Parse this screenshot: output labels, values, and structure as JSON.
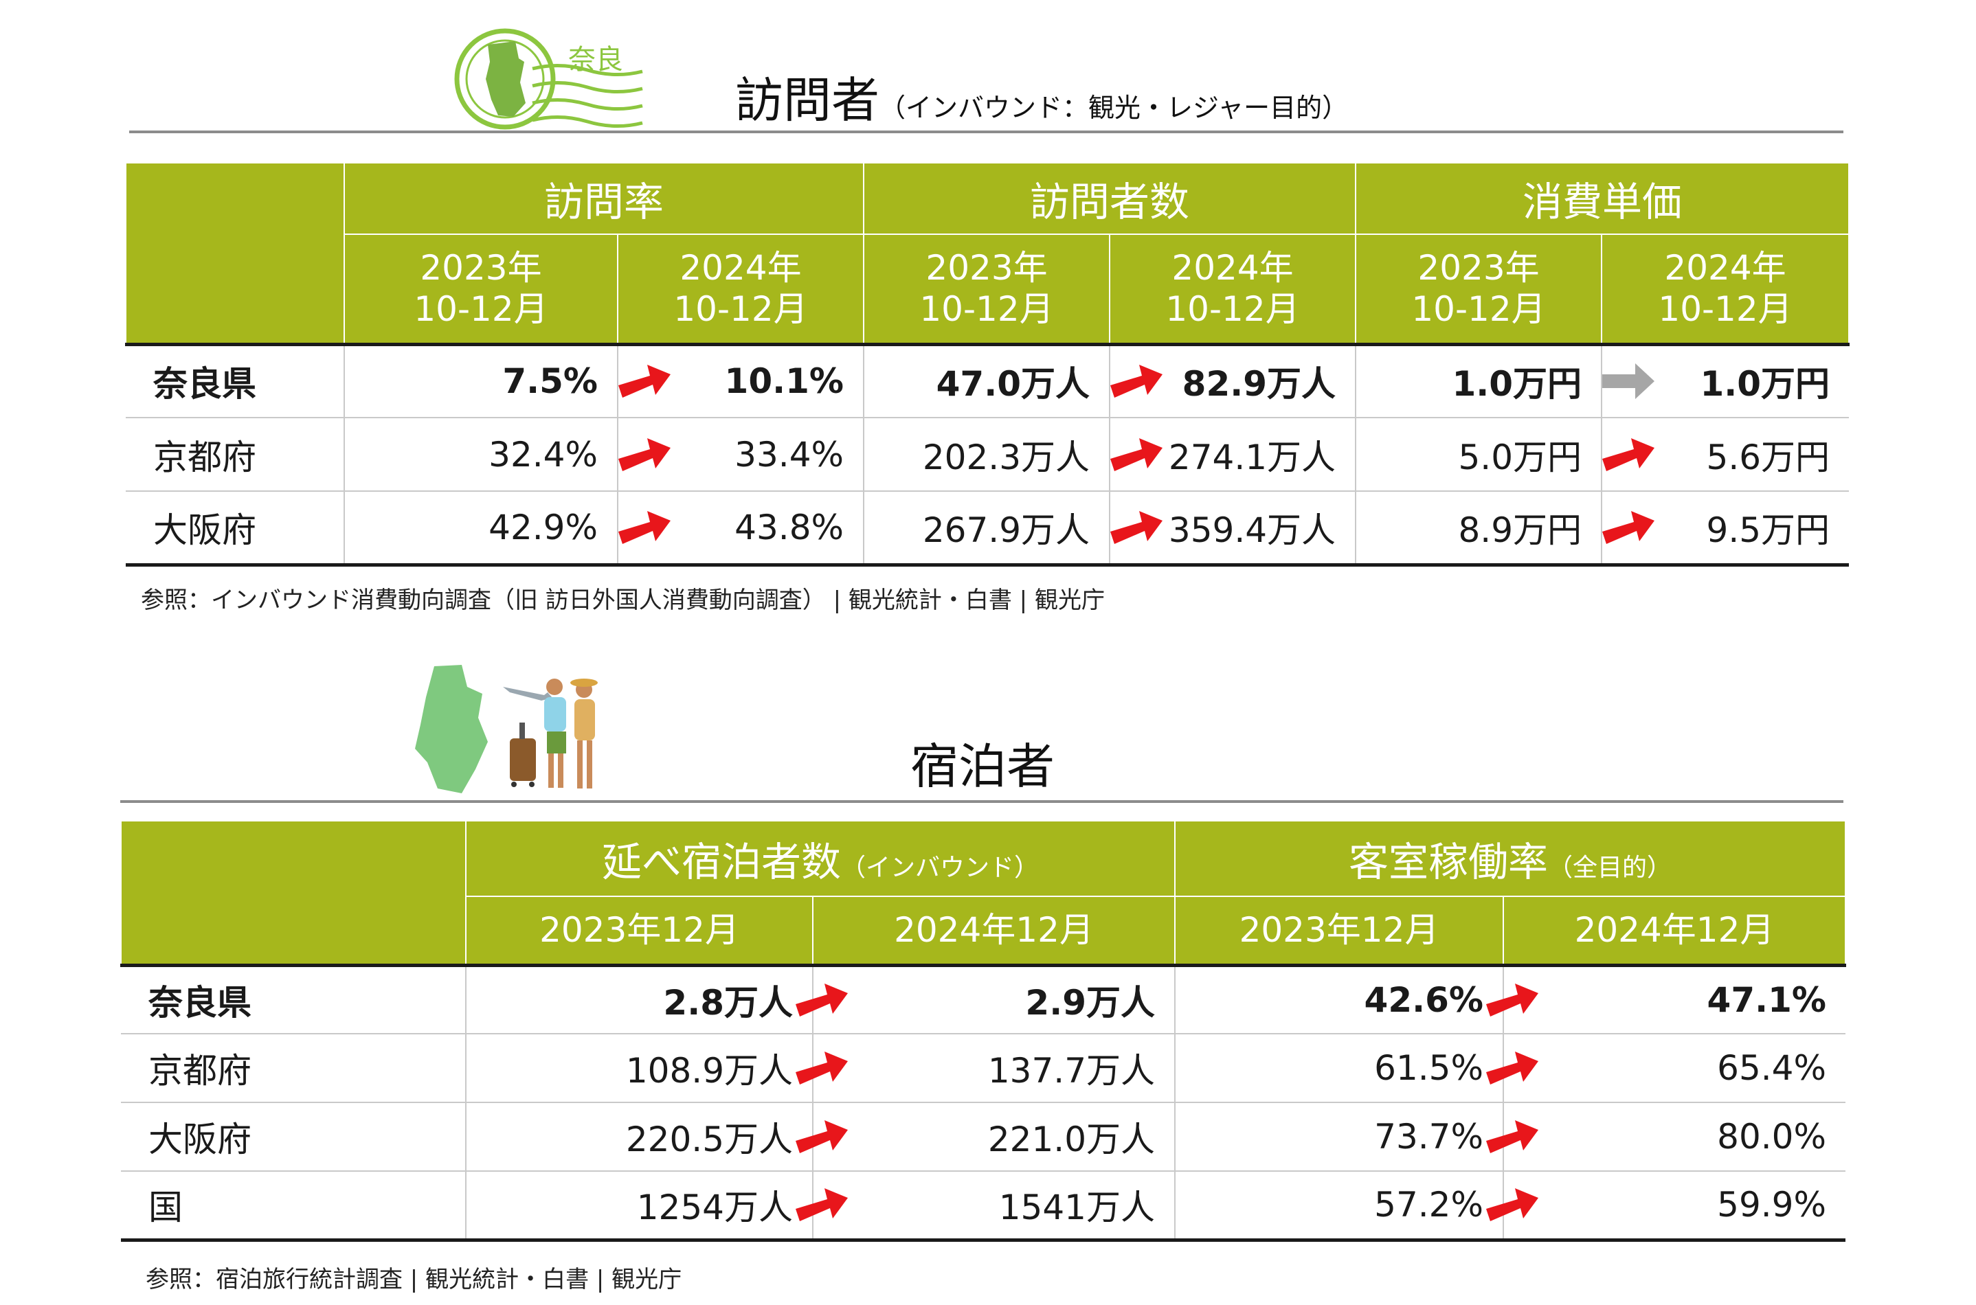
{
  "colors": {
    "header_bg": "#a6b71c",
    "arrow_up": "#e8161b",
    "arrow_flat": "#a6a6a6",
    "stamp_green": "#8cc63f"
  },
  "visitors": {
    "title": "訪問者",
    "subtitle": "（インバウンド：観光・レジャー目的）",
    "stamp_label": "奈良",
    "groups": [
      "訪問率",
      "訪問者数",
      "消費単価"
    ],
    "periods": [
      "2023年\n10-12月",
      "2024年\n10-12月",
      "2023年\n10-12月",
      "2024年\n10-12月",
      "2023年\n10-12月",
      "2024年\n10-12月"
    ],
    "rows": [
      {
        "name": "奈良県",
        "values": [
          "7.5%",
          "10.1%",
          "47.0万人",
          "82.9万人",
          "1.0万円",
          "1.0万円"
        ],
        "trends": [
          "up",
          "up",
          "flat"
        ]
      },
      {
        "name": "京都府",
        "values": [
          "32.4%",
          "33.4%",
          "202.3万人",
          "274.1万人",
          "5.0万円",
          "5.6万円"
        ],
        "trends": [
          "up",
          "up",
          "up"
        ]
      },
      {
        "name": "大阪府",
        "values": [
          "42.9%",
          "43.8%",
          "267.9万人",
          "359.4万人",
          "8.9万円",
          "9.5万円"
        ],
        "trends": [
          "up",
          "up",
          "up"
        ]
      }
    ],
    "reference": "参照：インバウンド消費動向調査（旧 訪日外国人消費動向調査） | 観光統計・白書 | 観光庁"
  },
  "lodging": {
    "title": "宿泊者",
    "groups": [
      {
        "label": "延べ宿泊者数",
        "note": "（インバウンド）"
      },
      {
        "label": "客室稼働率",
        "note": "（全目的）"
      }
    ],
    "periods": [
      "2023年12月",
      "2024年12月",
      "2023年12月",
      "2024年12月"
    ],
    "rows": [
      {
        "name": "奈良県",
        "values": [
          "2.8万人",
          "2.9万人",
          "42.6%",
          "47.1%"
        ],
        "trends": [
          "up",
          "up"
        ]
      },
      {
        "name": "京都府",
        "values": [
          "108.9万人",
          "137.7万人",
          "61.5%",
          "65.4%"
        ],
        "trends": [
          "up",
          "up"
        ]
      },
      {
        "name": "大阪府",
        "values": [
          "220.5万人",
          "221.0万人",
          "73.7%",
          "80.0%"
        ],
        "trends": [
          "up",
          "up"
        ]
      },
      {
        "name": "国",
        "values": [
          "1254万人",
          "1541万人",
          "57.2%",
          "59.9%"
        ],
        "trends": [
          "up",
          "up"
        ]
      }
    ],
    "reference": "参照：宿泊旅行統計調査 | 観光統計・白書 | 観光庁"
  }
}
